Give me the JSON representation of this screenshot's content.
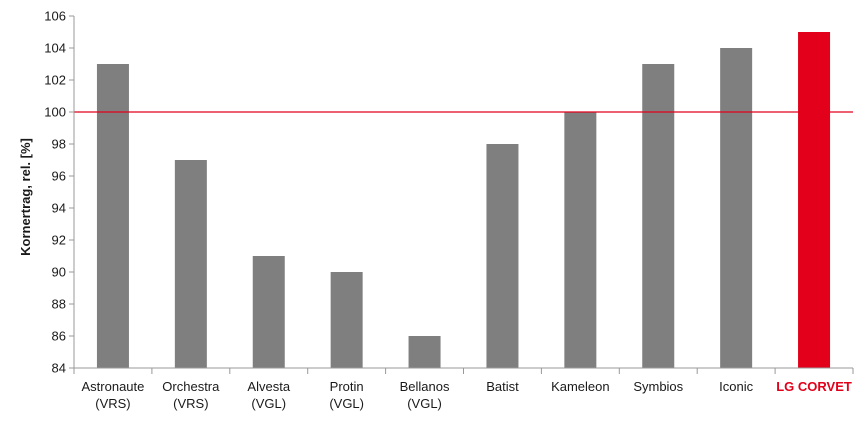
{
  "chart_data": {
    "type": "bar",
    "title": "",
    "xlabel": "",
    "ylabel": "Kornertrag, rel. [%]",
    "ylim": [
      84,
      106
    ],
    "yticks": [
      84,
      86,
      88,
      90,
      92,
      94,
      96,
      98,
      100,
      102,
      104,
      106
    ],
    "categories": [
      [
        "Astronaute",
        "(VRS)"
      ],
      [
        "Orchestra",
        "(VRS)"
      ],
      [
        "Alvesta",
        "(VGL)"
      ],
      [
        "Protin",
        "(VGL)"
      ],
      [
        "Bellanos",
        "(VGL)"
      ],
      [
        "Batist"
      ],
      [
        "Kameleon"
      ],
      [
        "Symbios"
      ],
      [
        "Iconic"
      ],
      [
        "LG CORVET"
      ]
    ],
    "values": [
      103,
      97,
      91,
      90,
      86,
      98,
      100,
      103,
      104,
      105
    ],
    "highlight_index": 9,
    "reference_line": 100,
    "grid": false,
    "colors": {
      "bar": "#7f7f7f",
      "highlight": "#e2001a",
      "reference_line": "#e2001a",
      "axis": "#999999",
      "text": "#1a1a1a"
    }
  }
}
